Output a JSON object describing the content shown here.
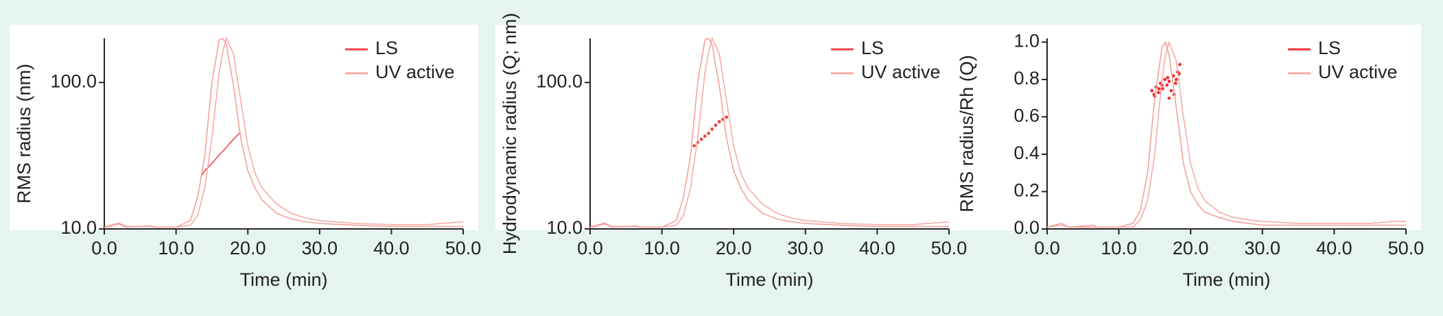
{
  "chart_data": [
    {
      "type": "line",
      "ylabel": "RMS radius (nm)",
      "xlabel": "Time (min)",
      "log_y": true,
      "legend": "upper right",
      "xlim": [
        0,
        50
      ],
      "ylim": [
        10,
        200
      ],
      "xticks": [
        {
          "value": 0,
          "label": "0.0"
        },
        {
          "value": 10,
          "label": "10.0"
        },
        {
          "value": 20,
          "label": "20.0"
        },
        {
          "value": 30,
          "label": "30.0"
        },
        {
          "value": 40,
          "label": "40.0"
        },
        {
          "value": 50,
          "label": "50.0"
        }
      ],
      "yticks": [
        {
          "value": 10,
          "label": "10.0"
        },
        {
          "value": 100,
          "label": "100.0"
        }
      ],
      "series": [
        {
          "name": "LS",
          "color": "#f04444",
          "mode": "line",
          "x": [
            13.5,
            14,
            15,
            16,
            17,
            18,
            19
          ],
          "values": [
            23,
            25,
            28,
            32,
            36,
            41,
            46
          ]
        },
        {
          "name": "UV active",
          "color": "#f6aaa6",
          "mode": "line",
          "x": [
            0,
            2,
            3,
            6.5,
            7,
            10,
            12,
            13,
            14,
            15,
            16,
            16.5,
            17,
            18,
            19,
            20,
            21,
            22,
            24,
            26,
            28,
            30,
            35,
            40,
            45,
            48,
            50
          ],
          "values": [
            10.2,
            10.8,
            10.3,
            10.5,
            10.3,
            10.3,
            10.6,
            12.3,
            19,
            42,
            117,
            160,
            200,
            157,
            76,
            37,
            24,
            19,
            14.8,
            12.8,
            11.9,
            11.4,
            10.9,
            10.7,
            10.7,
            11,
            11.2
          ]
        },
        {
          "color": "#f4a09a",
          "mode": "line",
          "x": [
            0,
            2,
            3,
            6.5,
            7,
            10,
            12,
            13,
            14,
            15,
            16,
            16.5,
            17,
            18,
            19,
            20,
            21,
            22,
            24,
            26,
            28,
            30,
            35,
            40,
            45,
            48,
            50
          ],
          "values": [
            10.3,
            11,
            10.4,
            10.4,
            10.3,
            10.3,
            11.4,
            16.4,
            31.6,
            101,
            195,
            200,
            182,
            95,
            42,
            25,
            19,
            15.7,
            12.8,
            11.7,
            11.2,
            10.9,
            10.6,
            10.4,
            10.4,
            10.4,
            10.4
          ]
        }
      ]
    },
    {
      "type": "line",
      "ylabel": "Hydrodynamic radius (Q; nm)",
      "xlabel": "Time (min)",
      "log_y": true,
      "legend": "upper right",
      "xlim": [
        0,
        50
      ],
      "ylim": [
        10,
        200
      ],
      "xticks": [
        {
          "value": 0,
          "label": "0.0"
        },
        {
          "value": 10,
          "label": "10.0"
        },
        {
          "value": 20,
          "label": "20.0"
        },
        {
          "value": 30,
          "label": "30.0"
        },
        {
          "value": 40,
          "label": "40.0"
        },
        {
          "value": 50,
          "label": "50.0"
        }
      ],
      "yticks": [
        {
          "value": 10,
          "label": "10.0"
        },
        {
          "value": 100,
          "label": "100.0"
        }
      ],
      "series": [
        {
          "name": "LS",
          "color": "#f04444",
          "mode": "scatter",
          "x": [
            14.5,
            15,
            15.5,
            16,
            16.5,
            17,
            17.5,
            18,
            18.5,
            19
          ],
          "values": [
            37,
            39,
            41,
            43,
            45,
            48,
            51,
            54,
            56,
            58
          ]
        },
        {
          "name": "UV active",
          "color": "#f6aaa6",
          "mode": "line",
          "x": [
            0,
            2,
            3,
            6.5,
            7,
            10,
            12,
            13,
            14,
            15,
            16,
            16.5,
            17,
            18,
            19,
            20,
            21,
            22,
            24,
            26,
            28,
            30,
            35,
            40,
            45,
            48,
            50
          ],
          "values": [
            10.2,
            10.8,
            10.3,
            10.5,
            10.3,
            10.3,
            10.6,
            12.3,
            19,
            42,
            117,
            160,
            200,
            157,
            76,
            37,
            24,
            19,
            14.8,
            12.8,
            11.9,
            11.4,
            10.9,
            10.7,
            10.7,
            11,
            11.2
          ]
        },
        {
          "color": "#f4a09a",
          "mode": "line",
          "x": [
            0,
            2,
            3,
            6.5,
            7,
            10,
            12,
            13,
            14,
            15,
            16,
            16.5,
            17,
            18,
            19,
            20,
            21,
            22,
            24,
            26,
            28,
            30,
            35,
            40,
            45,
            48,
            50
          ],
          "values": [
            10.3,
            11,
            10.4,
            10.4,
            10.3,
            10.3,
            11.4,
            16.4,
            31.6,
            101,
            195,
            200,
            182,
            95,
            42,
            25,
            19,
            15.7,
            12.8,
            11.7,
            11.2,
            10.9,
            10.6,
            10.4,
            10.4,
            10.4,
            10.4
          ]
        }
      ]
    },
    {
      "type": "line",
      "ylabel": "RMS radius/Rh (Q)",
      "xlabel": "Time (min)",
      "log_y": false,
      "legend": "upper right",
      "xlim": [
        0,
        50
      ],
      "ylim": [
        0,
        1.02
      ],
      "xticks": [
        {
          "value": 0,
          "label": "0.0"
        },
        {
          "value": 10,
          "label": "10.0"
        },
        {
          "value": 20,
          "label": "20.0"
        },
        {
          "value": 30,
          "label": "30.0"
        },
        {
          "value": 40,
          "label": "40.0"
        },
        {
          "value": 50,
          "label": "50.0"
        }
      ],
      "yticks": [
        {
          "value": 0,
          "label": "0.0"
        },
        0.2,
        0.4,
        0.6,
        0.8,
        {
          "value": 1,
          "label": "1.0"
        }
      ],
      "series": [
        {
          "name": "LS",
          "color": "#f03030",
          "mode": "scatter",
          "x": [
            14.6,
            14.9,
            15.2,
            15.5,
            15.8,
            16.1,
            16.4,
            16.7,
            17,
            17.3,
            17.6,
            17.9,
            18.2,
            18.5,
            15,
            16,
            17,
            18,
            15.6,
            16.8,
            17.7,
            18.4
          ],
          "values": [
            0.74,
            0.72,
            0.76,
            0.73,
            0.78,
            0.75,
            0.8,
            0.77,
            0.79,
            0.74,
            0.82,
            0.78,
            0.84,
            0.88,
            0.71,
            0.77,
            0.7,
            0.8,
            0.75,
            0.81,
            0.72,
            0.83
          ]
        },
        {
          "name": "UV active",
          "color": "#f6aaa6",
          "mode": "line",
          "x": [
            0,
            2,
            3,
            6.5,
            7,
            10,
            12,
            13,
            14,
            15,
            16,
            16.5,
            17,
            18,
            19,
            20,
            21,
            22,
            24,
            26,
            28,
            30,
            35,
            40,
            45,
            48,
            50
          ],
          "values": [
            0.01,
            0.02,
            0.01,
            0.02,
            0.01,
            0.01,
            0.01,
            0.05,
            0.15,
            0.4,
            0.8,
            0.93,
            1.0,
            0.9,
            0.6,
            0.35,
            0.22,
            0.15,
            0.09,
            0.06,
            0.05,
            0.04,
            0.03,
            0.03,
            0.03,
            0.04,
            0.04
          ]
        },
        {
          "color": "#f4a09a",
          "mode": "line",
          "x": [
            0,
            2,
            3,
            6.5,
            7,
            10,
            12,
            13,
            14,
            15,
            16,
            16.5,
            17,
            18,
            19,
            20,
            21,
            22,
            24,
            26,
            28,
            30,
            35,
            40,
            45,
            48,
            50
          ],
          "values": [
            0.01,
            0.03,
            0.01,
            0.01,
            0.01,
            0.01,
            0.03,
            0.1,
            0.3,
            0.7,
            0.97,
            1.0,
            0.93,
            0.65,
            0.35,
            0.2,
            0.13,
            0.09,
            0.06,
            0.04,
            0.03,
            0.02,
            0.02,
            0.02,
            0.02,
            0.02,
            0.02
          ]
        }
      ]
    }
  ]
}
